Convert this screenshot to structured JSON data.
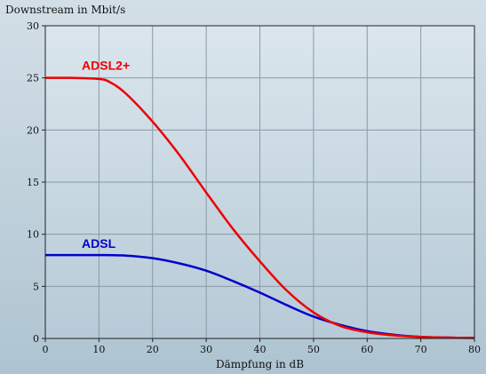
{
  "chart_data": {
    "type": "line",
    "title": "",
    "ylabel": "Downstream in Mbit/s",
    "xlabel": "Dämpfung in dB",
    "xlim": [
      0,
      80
    ],
    "ylim": [
      0,
      30
    ],
    "xticks": [
      0,
      10,
      20,
      30,
      40,
      50,
      60,
      70,
      80
    ],
    "yticks": [
      0,
      5,
      10,
      15,
      20,
      25,
      30
    ],
    "grid": true,
    "series": [
      {
        "name": "ADSL2+",
        "color": "#ee0000",
        "x": [
          0,
          5,
          10,
          12,
          15,
          20,
          25,
          30,
          35,
          40,
          45,
          50,
          55,
          60,
          65,
          70,
          75,
          80
        ],
        "y": [
          25,
          25,
          24.9,
          24.6,
          23.5,
          20.8,
          17.6,
          14.0,
          10.5,
          7.4,
          4.6,
          2.5,
          1.2,
          0.6,
          0.3,
          0.15,
          0.08,
          0.05
        ]
      },
      {
        "name": "ADSL",
        "color": "#0000cc",
        "x": [
          0,
          5,
          10,
          15,
          20,
          25,
          30,
          35,
          40,
          45,
          50,
          55,
          60,
          65,
          70,
          75,
          80
        ],
        "y": [
          8,
          8,
          8,
          7.95,
          7.7,
          7.2,
          6.5,
          5.5,
          4.4,
          3.2,
          2.1,
          1.3,
          0.7,
          0.35,
          0.15,
          0.08,
          0.05
        ]
      }
    ]
  }
}
